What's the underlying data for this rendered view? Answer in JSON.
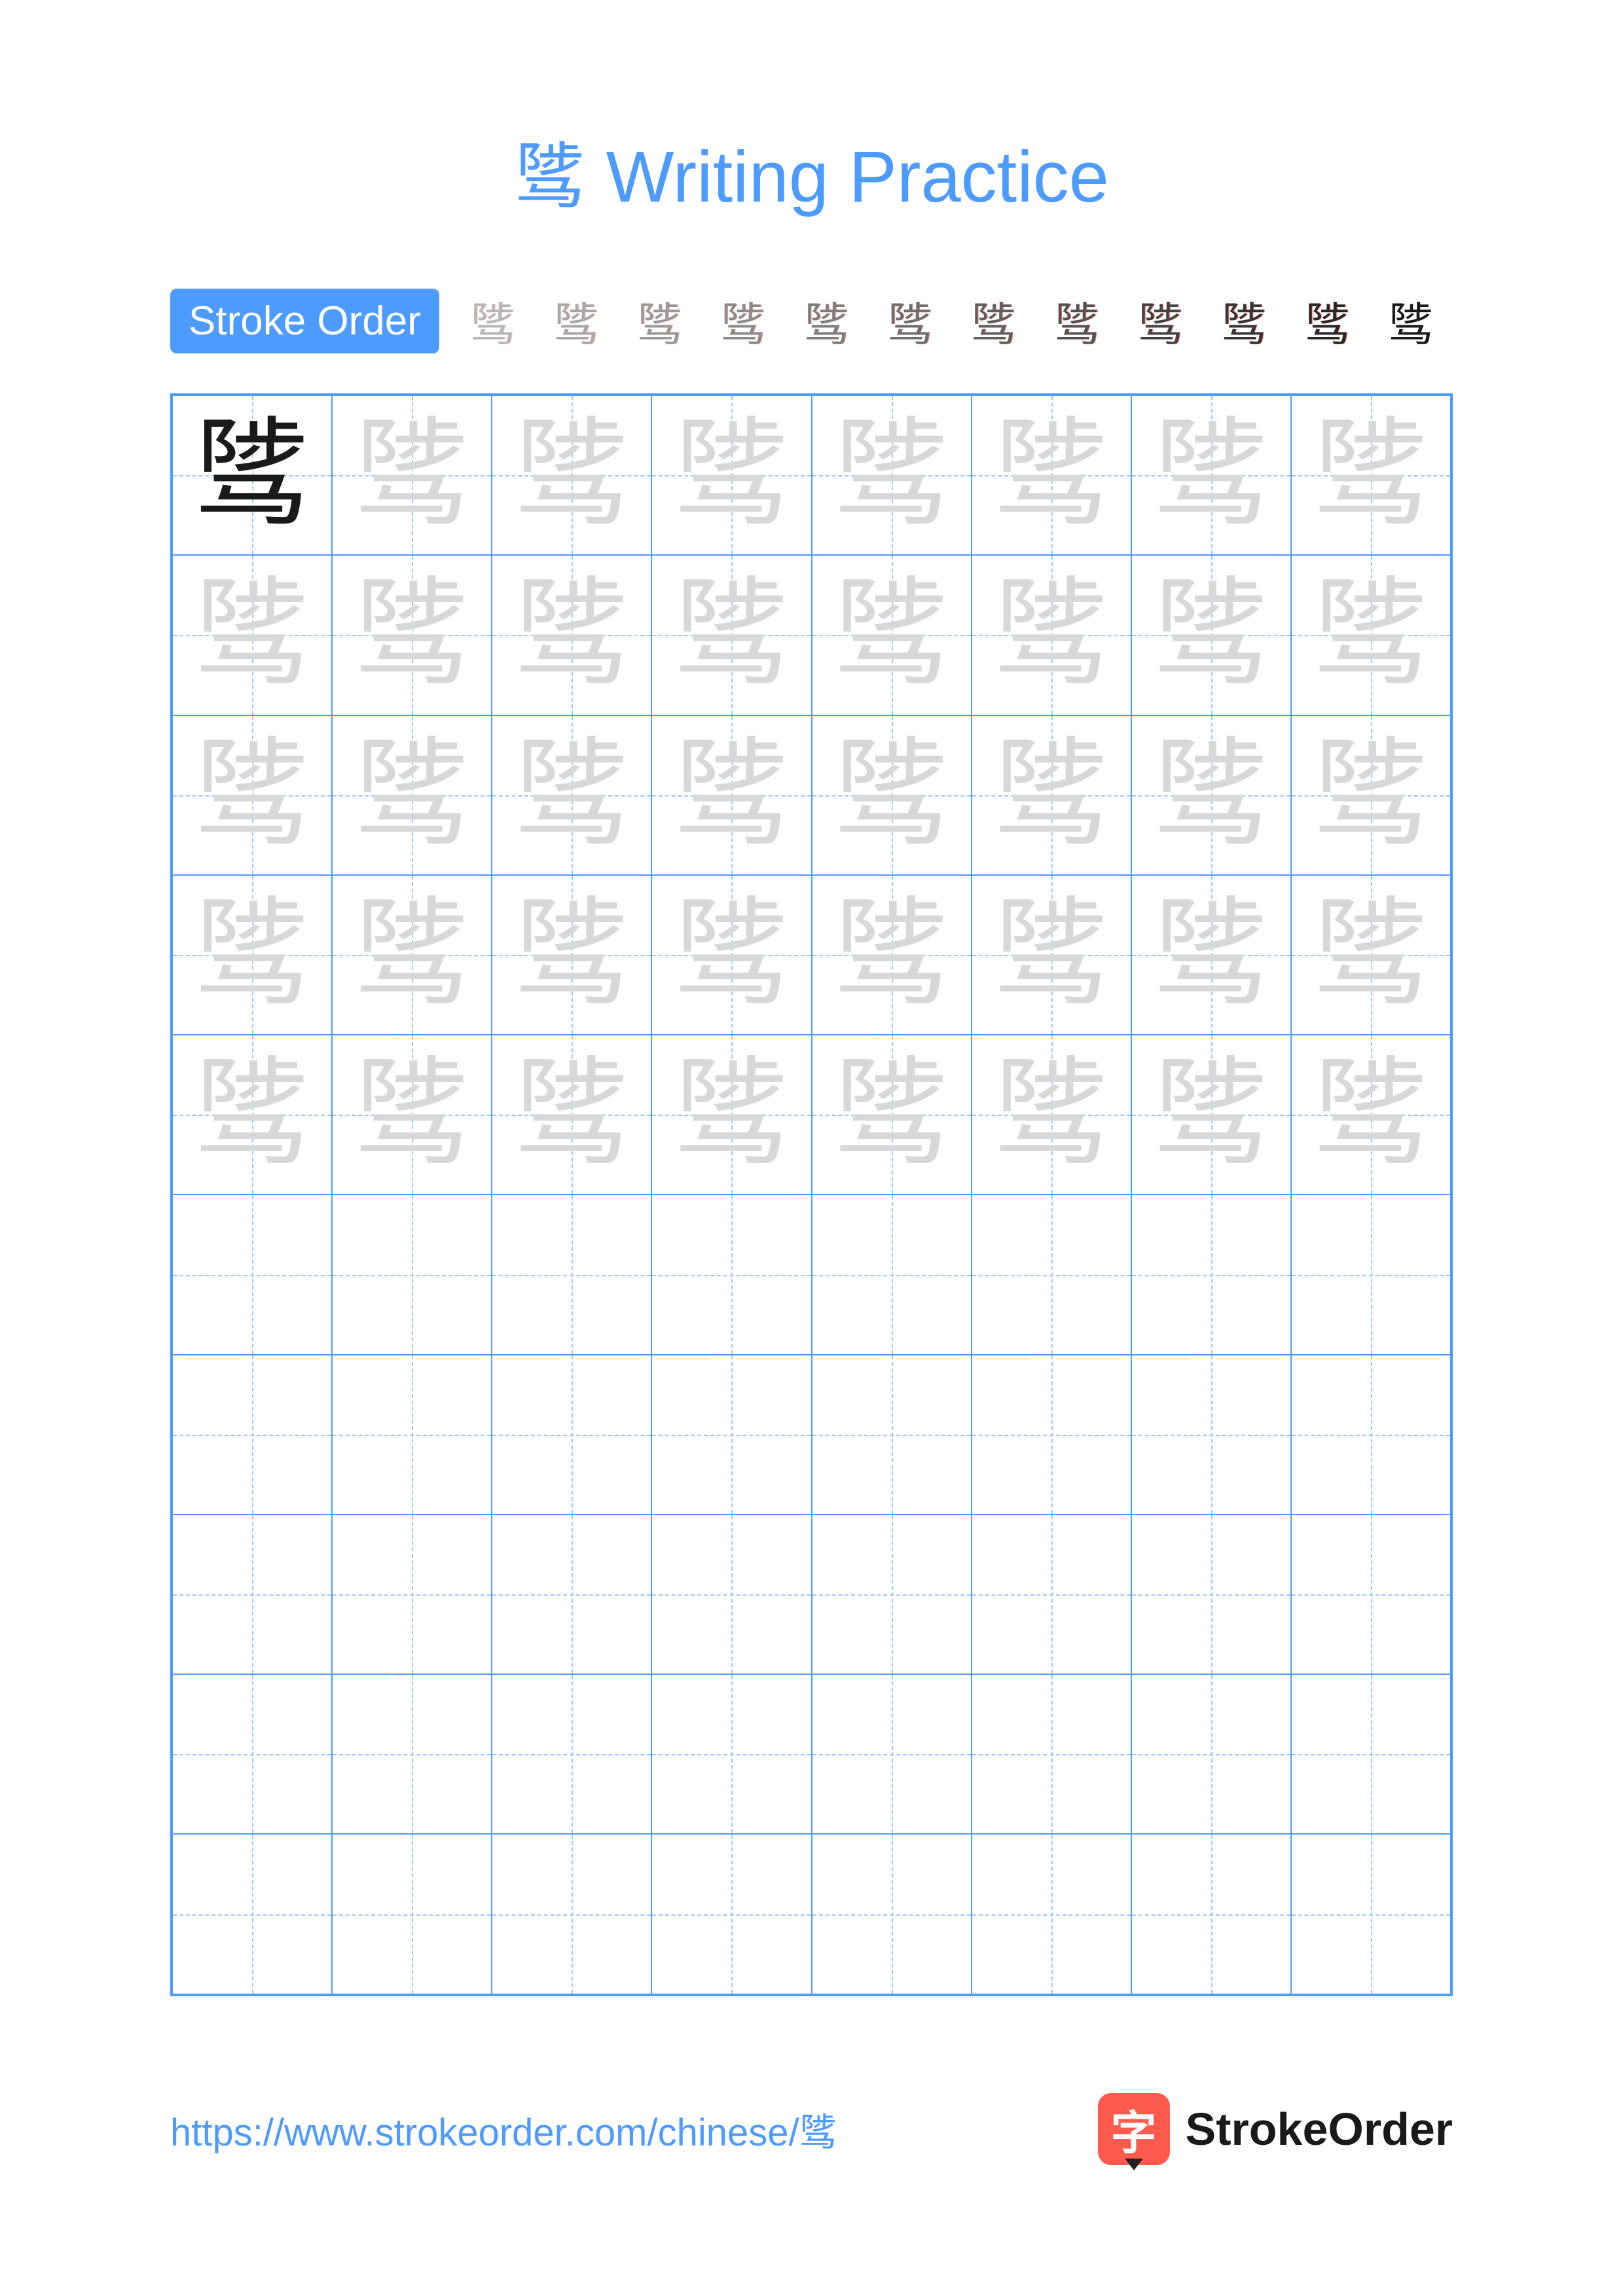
{
  "colors": {
    "accent": "#4d9bff",
    "grid_border": "#4d9bff",
    "grid_guide": "#9dc8ff",
    "title": "#4d9bff",
    "dark_char": "#1a1a1a",
    "trace_char": "#d8d8d8",
    "url": "#4d9bff",
    "brand_icon_bg": "#ff5a4d",
    "stroke_current": "#ff3b30"
  },
  "title": "骘 Writing Practice",
  "stroke_order": {
    "label": "Stroke Order",
    "character": "骘",
    "steps": 12
  },
  "practice_grid": {
    "cols": 8,
    "rows": 10,
    "character": "骘",
    "traced_rows": 5,
    "dark_cells": [
      [
        0,
        0
      ]
    ]
  },
  "footer": {
    "url": "https://www.strokeorder.com/chinese/骘",
    "brand_icon_char": "字",
    "brand_text": "StrokeOrder"
  }
}
